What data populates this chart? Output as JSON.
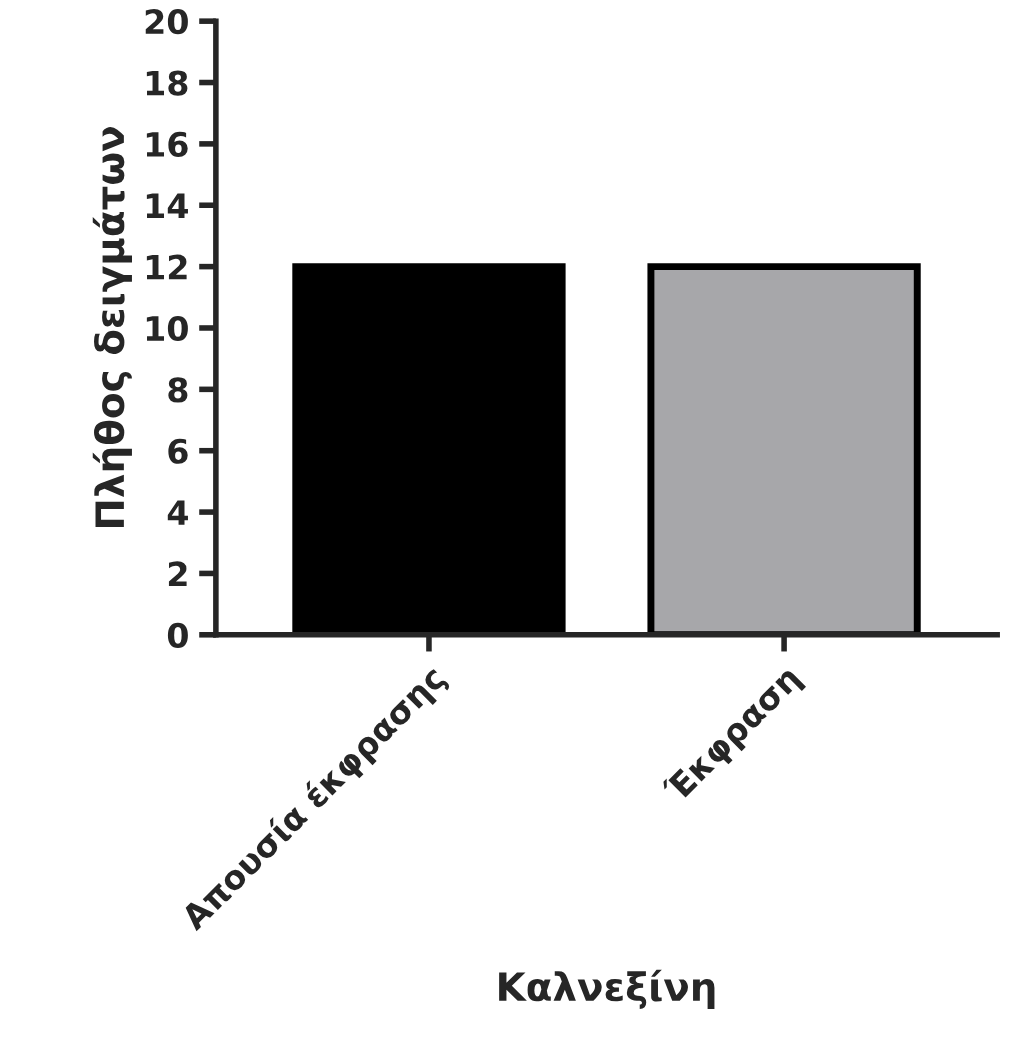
{
  "chart_data": {
    "type": "bar",
    "xlabel": "Καλνεξίνη",
    "ylabel": "Πλήθος δειγμάτων",
    "categories": [
      "Απουσία έκφρασης",
      "Έκφραση"
    ],
    "values": [
      12,
      12
    ],
    "colors": [
      "#000000",
      "#a7a7aa"
    ],
    "ylim": [
      0,
      20
    ],
    "yticks": [
      0,
      2,
      4,
      6,
      8,
      10,
      12,
      14,
      16,
      18,
      20
    ],
    "grid": false,
    "legend": false
  }
}
